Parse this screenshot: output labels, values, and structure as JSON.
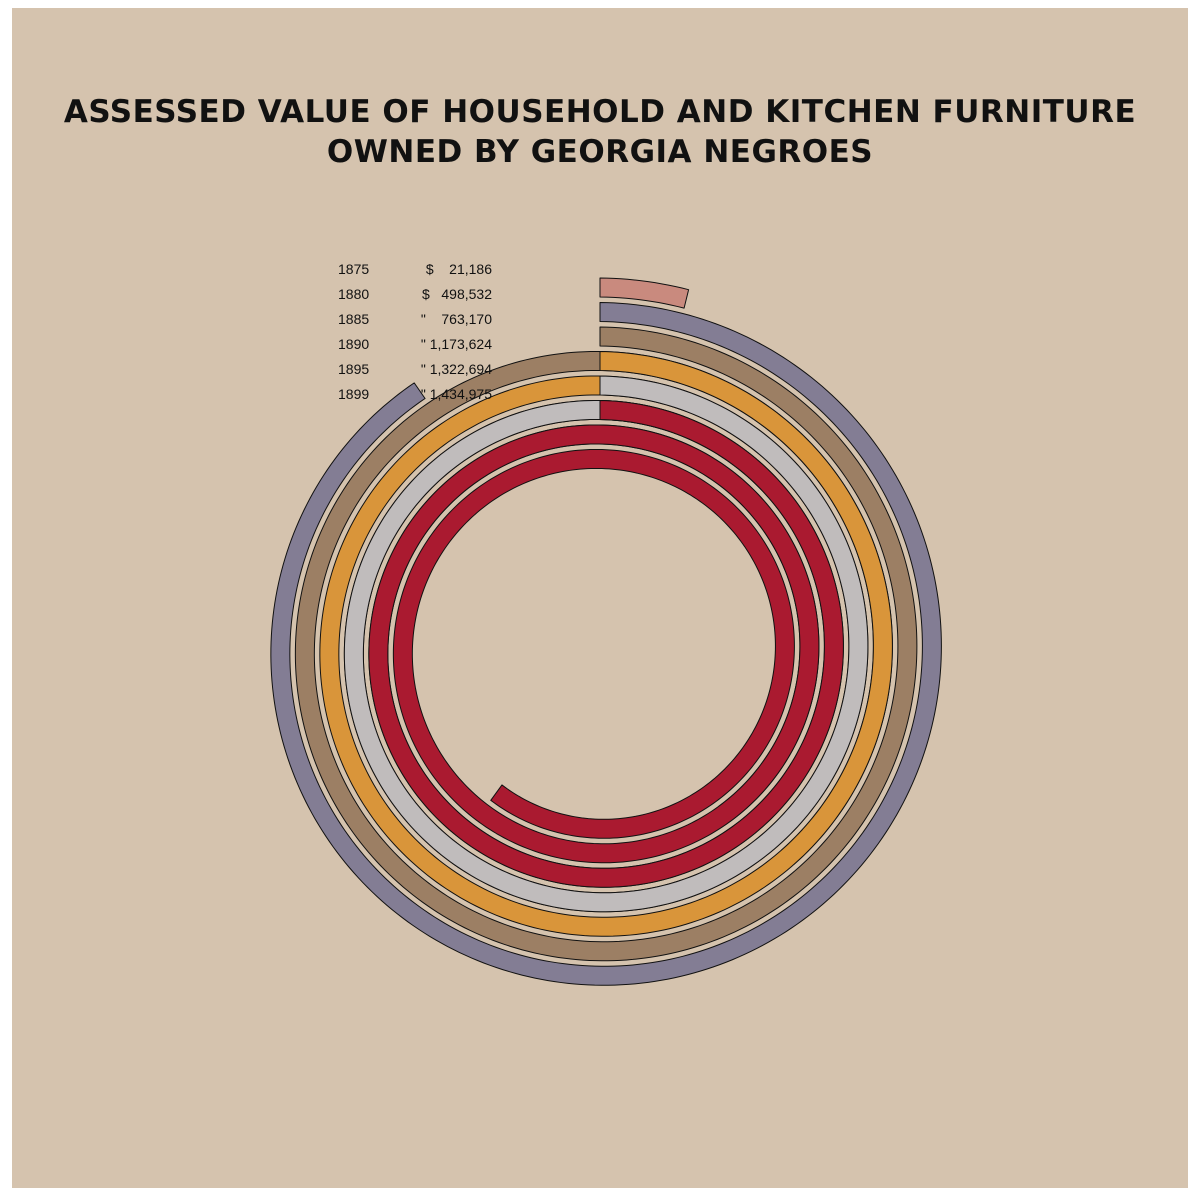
{
  "chart_data": {
    "type": "spiral",
    "title": [
      "ASSESSED VALUE OF HOUSEHOLD AND KITCHEN FURNITURE",
      "OWNED BY GEORGIA NEGROES"
    ],
    "categories": [
      "1875",
      "1880",
      "1885",
      "1890",
      "1895",
      "1899"
    ],
    "values": [
      21186,
      498532,
      763170,
      1173624,
      1322694,
      1434975
    ],
    "value_labels": [
      "$    21,186",
      "$   498,532",
      "\"    763,170",
      "\" 1,173,624",
      "\" 1,322,694",
      "\" 1,434,975"
    ],
    "colors": [
      "#c98a7e",
      "#837d94",
      "#9c7f64",
      "#d9953a",
      "#c0bcbc",
      "#aa1a30"
    ],
    "background": "#d5c3ae"
  }
}
